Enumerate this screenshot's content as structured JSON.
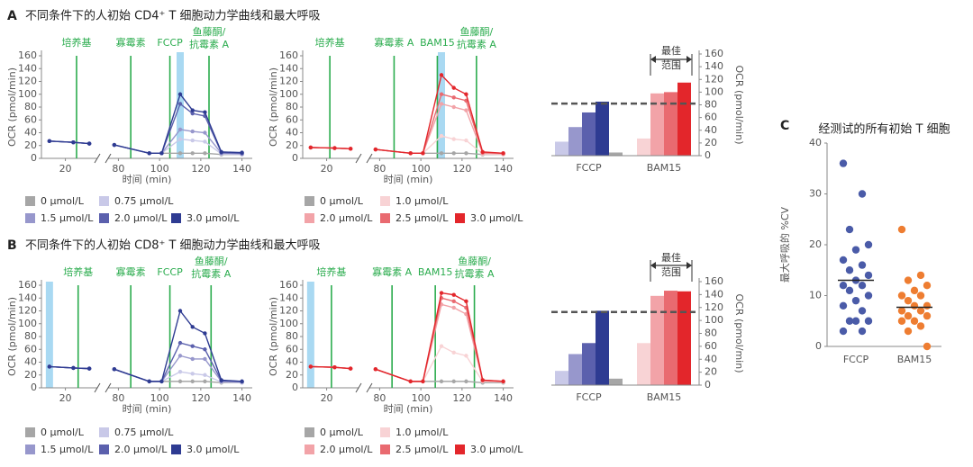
{
  "panels": [
    {
      "label": "A",
      "title": "不同条件下的人初始 CD4⁺ T 细胞动力学曲线和最大呼吸"
    },
    {
      "label": "B",
      "title": "不同条件下的人初始 CD8⁺ T 细胞动力学曲线和最大呼吸"
    },
    {
      "label": "C"
    }
  ],
  "chart_data": [
    {
      "type": "line",
      "xlabel": "时间 (min)",
      "ylabel": "OCR (pmol/min)",
      "xlim": [
        5,
        145
      ],
      "xbreak": [
        40,
        75
      ],
      "xticks": [
        20,
        80,
        100,
        120,
        140
      ],
      "ylim": [
        0,
        160
      ],
      "yticks": [
        0,
        20,
        40,
        60,
        80,
        100,
        120,
        140,
        160
      ],
      "highlight_index": 6,
      "annotations": [
        {
          "text": [
            "培养基"
          ],
          "x": 27
        },
        {
          "text": [
            "寡霉素"
          ],
          "x": 86
        },
        {
          "text": [
            "FCCP"
          ],
          "x": 105
        },
        {
          "text": [
            "鱼藤酮/",
            "抗霉素 A"
          ],
          "x": 124
        }
      ],
      "x": [
        10,
        25,
        35,
        78,
        95,
        101,
        110,
        116,
        122,
        130,
        140
      ],
      "series": [
        {
          "name": "0 μmol/L",
          "color": "#a6a6a6",
          "values": [
            27,
            25,
            23,
            21,
            8,
            8,
            8,
            8,
            8,
            6,
            6
          ]
        },
        {
          "name": "0.75 μmol/L",
          "color": "#c9c9e8",
          "values": [
            27,
            25,
            23,
            21,
            8,
            8,
            30,
            28,
            26,
            7,
            6
          ]
        },
        {
          "name": "1.5 μmol/L",
          "color": "#9797cc",
          "values": [
            27,
            25,
            23,
            21,
            8,
            8,
            45,
            42,
            40,
            8,
            7
          ]
        },
        {
          "name": "2.0 μmol/L",
          "color": "#5b60ad",
          "values": [
            27,
            25,
            23,
            21,
            8,
            8,
            85,
            70,
            66,
            9,
            8
          ]
        },
        {
          "name": "3.0 μmol/L",
          "color": "#2e3b92",
          "values": [
            27,
            25,
            23,
            21,
            8,
            8,
            100,
            75,
            72,
            10,
            9
          ]
        }
      ]
    },
    {
      "type": "line",
      "xlabel": "时间 (min)",
      "ylabel": "OCR (pmol/min)",
      "xlim": [
        5,
        145
      ],
      "xbreak": [
        40,
        75
      ],
      "xticks": [
        20,
        80,
        100,
        120,
        140
      ],
      "ylim": [
        0,
        160
      ],
      "yticks": [
        0,
        20,
        40,
        60,
        80,
        100,
        120,
        140,
        160
      ],
      "highlight_index": 6,
      "annotations": [
        {
          "text": [
            "培养基"
          ],
          "x": 22
        },
        {
          "text": [
            "寡霉素 A"
          ],
          "x": 87
        },
        {
          "text": [
            "BAM15"
          ],
          "x": 108
        },
        {
          "text": [
            "鱼藤酮/",
            "抗霉素 A"
          ],
          "x": 127
        }
      ],
      "x": [
        10,
        25,
        35,
        78,
        95,
        101,
        110,
        116,
        122,
        130,
        140
      ],
      "series": [
        {
          "name": "0 μmol/L",
          "color": "#a6a6a6",
          "values": [
            17,
            16,
            15,
            14,
            8,
            8,
            8,
            8,
            8,
            6,
            6
          ]
        },
        {
          "name": "1.0 μmol/L",
          "color": "#f8d3d5",
          "values": [
            17,
            16,
            15,
            14,
            8,
            8,
            35,
            30,
            28,
            7,
            6
          ]
        },
        {
          "name": "2.0 μmol/L",
          "color": "#f2a3a8",
          "values": [
            17,
            16,
            15,
            14,
            8,
            8,
            85,
            80,
            75,
            8,
            7
          ]
        },
        {
          "name": "2.5 μmol/L",
          "color": "#e96a70",
          "values": [
            17,
            16,
            15,
            14,
            8,
            8,
            100,
            95,
            90,
            9,
            8
          ]
        },
        {
          "name": "3.0 μmol/L",
          "color": "#e3262b",
          "values": [
            17,
            16,
            15,
            14,
            8,
            8,
            130,
            110,
            100,
            10,
            8
          ]
        }
      ]
    },
    {
      "type": "bar",
      "ylabel": "OCR (pmol/min)",
      "y2lim": [
        0,
        160
      ],
      "y2ticks": [
        0,
        20,
        40,
        60,
        80,
        100,
        120,
        140,
        160
      ],
      "reference_line": 82,
      "optimal_label": [
        "最佳",
        "范围"
      ],
      "groups": [
        {
          "name": "FCCP",
          "values": [
            22,
            45,
            68,
            85,
            5
          ],
          "colors": [
            "#c9c9e8",
            "#9797cc",
            "#5b60ad",
            "#2e3b92",
            "#a6a6a6"
          ]
        },
        {
          "name": "BAM15",
          "values": [
            27,
            98,
            100,
            115
          ],
          "colors": [
            "#f8d3d5",
            "#f2a3a8",
            "#e96a70",
            "#e3262b"
          ]
        }
      ]
    },
    {
      "type": "line",
      "xlabel": "时间 (min)",
      "ylabel": "OCR (pmol/min)",
      "xlim": [
        5,
        145
      ],
      "xbreak": [
        40,
        75
      ],
      "xticks": [
        20,
        80,
        100,
        120,
        140
      ],
      "ylim": [
        0,
        160
      ],
      "yticks": [
        0,
        20,
        40,
        60,
        80,
        100,
        120,
        140,
        160
      ],
      "highlight_index": 0,
      "annotations": [
        {
          "text": [
            "培养基"
          ],
          "x": 28
        },
        {
          "text": [
            "寡霉素"
          ],
          "x": 86
        },
        {
          "text": [
            "FCCP"
          ],
          "x": 105
        },
        {
          "text": [
            "鱼藤酮/",
            "抗霉素 A"
          ],
          "x": 125
        }
      ],
      "x": [
        10,
        25,
        35,
        78,
        95,
        101,
        110,
        116,
        122,
        130,
        140
      ],
      "series": [
        {
          "name": "0 μmol/L",
          "color": "#a6a6a6",
          "values": [
            33,
            31,
            30,
            29,
            10,
            10,
            10,
            10,
            10,
            8,
            8
          ]
        },
        {
          "name": "0.75 μmol/L",
          "color": "#c9c9e8",
          "values": [
            33,
            31,
            30,
            29,
            10,
            10,
            25,
            22,
            20,
            9,
            8
          ]
        },
        {
          "name": "1.5 μmol/L",
          "color": "#9797cc",
          "values": [
            33,
            31,
            30,
            29,
            10,
            10,
            50,
            45,
            45,
            10,
            9
          ]
        },
        {
          "name": "2.0 μmol/L",
          "color": "#5b60ad",
          "values": [
            33,
            31,
            30,
            29,
            10,
            10,
            70,
            65,
            60,
            11,
            10
          ]
        },
        {
          "name": "3.0 μmol/L",
          "color": "#2e3b92",
          "values": [
            33,
            31,
            30,
            29,
            10,
            10,
            120,
            95,
            85,
            12,
            10
          ]
        }
      ]
    },
    {
      "type": "line",
      "xlabel": "时间 (min)",
      "ylabel": "OCR (pmol/min)",
      "xlim": [
        5,
        145
      ],
      "xbreak": [
        40,
        75
      ],
      "xticks": [
        20,
        80,
        100,
        120,
        140
      ],
      "ylim": [
        0,
        160
      ],
      "yticks": [
        0,
        20,
        40,
        60,
        80,
        100,
        120,
        140,
        160
      ],
      "highlight_index": 0,
      "annotations": [
        {
          "text": [
            "培养基"
          ],
          "x": 23
        },
        {
          "text": [
            "寡霉素 A"
          ],
          "x": 86
        },
        {
          "text": [
            "BAM15"
          ],
          "x": 107
        },
        {
          "text": [
            "鱼藤酮/",
            "抗霉素 A"
          ],
          "x": 126
        }
      ],
      "x": [
        10,
        25,
        35,
        78,
        95,
        101,
        110,
        116,
        122,
        130,
        140
      ],
      "series": [
        {
          "name": "0 μmol/L",
          "color": "#a6a6a6",
          "values": [
            33,
            32,
            30,
            29,
            10,
            10,
            10,
            10,
            10,
            8,
            8
          ]
        },
        {
          "name": "1.0 μmol/L",
          "color": "#f8d3d5",
          "values": [
            33,
            32,
            30,
            29,
            10,
            10,
            65,
            55,
            50,
            10,
            9
          ]
        },
        {
          "name": "2.0 μmol/L",
          "color": "#f2a3a8",
          "values": [
            33,
            32,
            30,
            29,
            10,
            10,
            130,
            125,
            115,
            11,
            10
          ]
        },
        {
          "name": "2.5 μmol/L",
          "color": "#e96a70",
          "values": [
            33,
            32,
            30,
            29,
            10,
            10,
            140,
            135,
            125,
            12,
            10
          ]
        },
        {
          "name": "3.0 μmol/L",
          "color": "#e3262b",
          "values": [
            33,
            32,
            30,
            29,
            10,
            10,
            148,
            145,
            135,
            12,
            10
          ]
        }
      ]
    },
    {
      "type": "bar",
      "ylabel": "OCR (pmol/min)",
      "y2lim": [
        0,
        160
      ],
      "y2ticks": [
        0,
        20,
        40,
        60,
        80,
        100,
        120,
        140,
        160
      ],
      "reference_line": 113,
      "optimal_label": [
        "最佳",
        "范围"
      ],
      "groups": [
        {
          "name": "FCCP",
          "values": [
            22,
            48,
            65,
            115,
            10
          ],
          "colors": [
            "#c9c9e8",
            "#9797cc",
            "#5b60ad",
            "#2e3b92",
            "#a6a6a6"
          ]
        },
        {
          "name": "BAM15",
          "values": [
            65,
            138,
            146,
            145
          ],
          "colors": [
            "#f8d3d5",
            "#f2a3a8",
            "#e96a70",
            "#e3262b"
          ]
        }
      ]
    },
    {
      "type": "scatter",
      "title": "经测试的所有初始 T 细胞",
      "ylabel": "最大呼吸的 %CV",
      "ylim": [
        0,
        40
      ],
      "yticks": [
        0,
        10,
        20,
        30,
        40
      ],
      "groups": [
        {
          "name": "FCCP",
          "color": "#4a5ba8",
          "mean": 13,
          "values": [
            36,
            30,
            23,
            20,
            19,
            17,
            16,
            15,
            14,
            13,
            12,
            12,
            11,
            10,
            9,
            8,
            7,
            5,
            5,
            5,
            3,
            3
          ]
        },
        {
          "name": "BAM15",
          "color": "#ee7d31",
          "mean": 7.7,
          "values": [
            23,
            14,
            13,
            12,
            11,
            10,
            10,
            9,
            8,
            8,
            7,
            7,
            6,
            6,
            5,
            5,
            4,
            3,
            0
          ]
        }
      ]
    }
  ]
}
